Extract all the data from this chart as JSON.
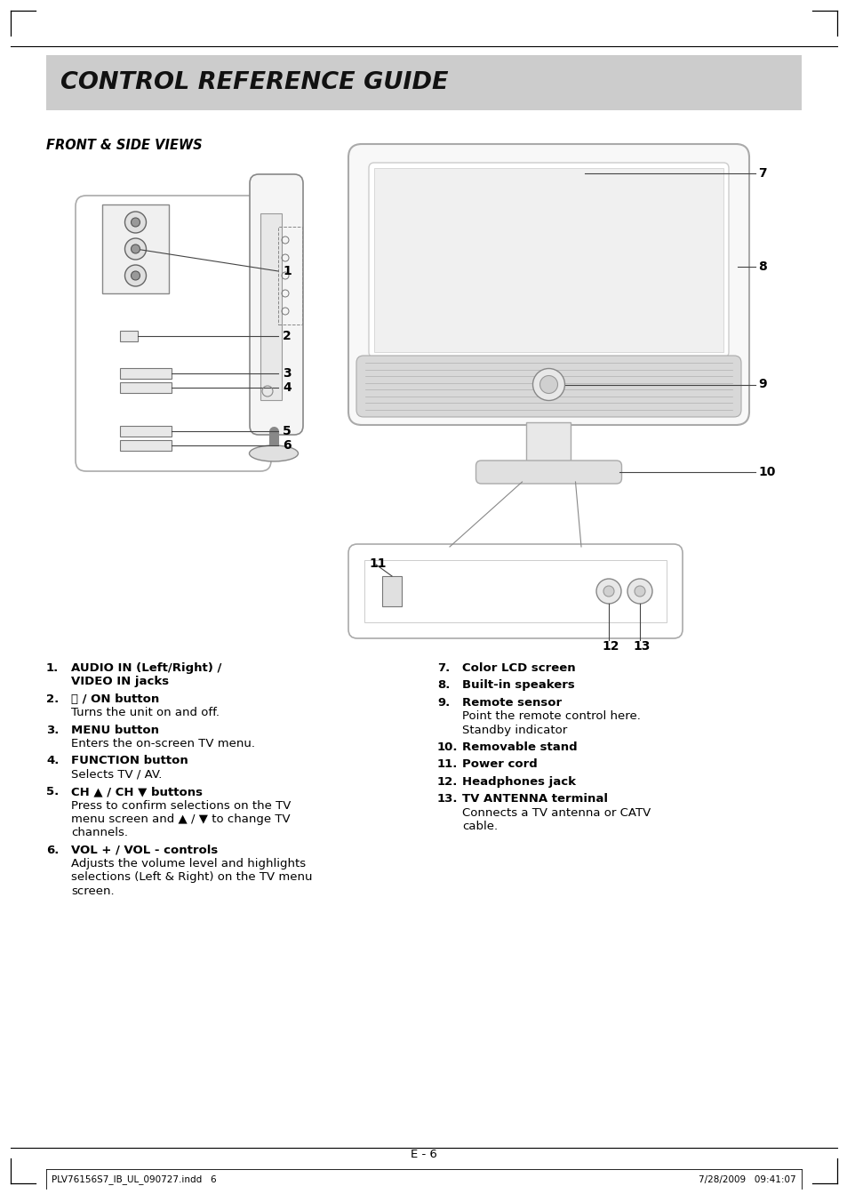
{
  "bg_color": "#ffffff",
  "header_bg": "#cccccc",
  "header_text": "CONTROL REFERENCE GUIDE",
  "header_text_color": "#111111",
  "section_title": "FRONT & SIDE VIEWS",
  "page_number": "E - 6",
  "footer_left": "PLV76156S7_IB_UL_090727.indd   6",
  "footer_right": "7/28/2009   09:41:07",
  "left_items": [
    {
      "num": "1.",
      "bold1": "AUDIO IN (Left/Right) /",
      "bold2": "VIDEO IN jacks",
      "normal": ""
    },
    {
      "num": "2.",
      "bold1": "ⓘ / ON button",
      "bold2": "",
      "normal": "Turns the unit on and off."
    },
    {
      "num": "3.",
      "bold1": "MENU button",
      "bold2": "",
      "normal": "Enters the on-screen TV menu."
    },
    {
      "num": "4.",
      "bold1": "FUNCTION button",
      "bold2": "",
      "normal": "Selects TV / AV."
    },
    {
      "num": "5.",
      "bold1": "CH ▲ / CH ▼ buttons",
      "bold2": "",
      "normal": "Press to confirm selections on the TV\nmenu screen and ▲ / ▼ to change TV\nchannels."
    },
    {
      "num": "6.",
      "bold1": "VOL + / VOL - controls",
      "bold2": "",
      "normal": "Adjusts the volume level and highlights\nselections (Left & Right) on the TV menu\nscreen."
    }
  ],
  "right_items": [
    {
      "num": "7.",
      "bold1": "Color LCD screen",
      "bold2": "",
      "normal": ""
    },
    {
      "num": "8.",
      "bold1": "Built-in speakers",
      "bold2": "",
      "normal": ""
    },
    {
      "num": "9.",
      "bold1": "Remote sensor",
      "bold2": "",
      "normal": "Point the remote control here.\nStandby indicator"
    },
    {
      "num": "10.",
      "bold1": "Removable stand",
      "bold2": "",
      "normal": ""
    },
    {
      "num": "11.",
      "bold1": "Power cord",
      "bold2": "",
      "normal": ""
    },
    {
      "num": "12.",
      "bold1": "Headphones jack",
      "bold2": "",
      "normal": ""
    },
    {
      "num": "13.",
      "bold1": "TV ANTENNA terminal",
      "bold2": "",
      "normal": "Connects a TV antenna or CATV\ncable."
    }
  ]
}
